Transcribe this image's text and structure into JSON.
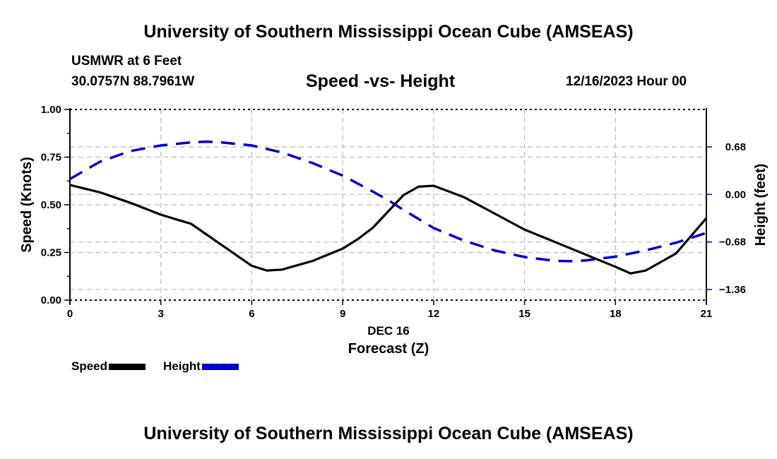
{
  "header": {
    "title": "University of Southern Mississippi Ocean Cube (AMSEAS)",
    "station": "USMWR at 6 Feet",
    "coordinates": "30.0757N  88.7961W",
    "subtitle": "Speed -vs- Height",
    "datetime": "12/16/2023 Hour 00"
  },
  "footer": {
    "title": "University of Southern Mississippi Ocean Cube (AMSEAS)"
  },
  "chart_data": {
    "type": "line",
    "title": "Speed -vs- Height",
    "xlabel": "Forecast (Z)",
    "xlabel_date": "DEC 16",
    "ylabel": "Speed (Knots)",
    "y2label": "Height (feet)",
    "xlim": [
      0,
      21
    ],
    "ylim": [
      0,
      1.0
    ],
    "y2lim": [
      -1.36,
      0.68
    ],
    "xticks": [
      "0",
      "3",
      "6",
      "9",
      "12",
      "15",
      "18",
      "21"
    ],
    "xtick_values": [
      0,
      3,
      6,
      9,
      12,
      15,
      18,
      21
    ],
    "yticks": [
      "0.00",
      "0.25",
      "0.50",
      "0.75",
      "1.00"
    ],
    "ytick_values": [
      0,
      0.25,
      0.5,
      0.75,
      1.0
    ],
    "y2ticks": [
      "0.68",
      "0.00",
      "−0.68",
      "−1.36"
    ],
    "y2tick_values": [
      0.68,
      0,
      -0.68,
      -1.36
    ],
    "grid": true,
    "legend_position": "bottom-left",
    "colors": {
      "speed": "#000000",
      "height": "#0000cc",
      "grid": "#bbbbbb"
    },
    "series": [
      {
        "name": "Speed",
        "axis": "left",
        "style": "solid",
        "x": [
          0,
          1,
          2,
          3,
          4,
          5,
          6,
          6.5,
          7,
          8,
          9,
          9.5,
          10,
          11,
          11.5,
          12,
          13,
          14,
          15,
          16,
          17,
          18,
          18.5,
          19,
          20,
          21
        ],
        "values": [
          0.604,
          0.565,
          0.51,
          0.448,
          0.4,
          0.29,
          0.18,
          0.155,
          0.16,
          0.205,
          0.27,
          0.32,
          0.38,
          0.55,
          0.595,
          0.6,
          0.54,
          0.455,
          0.37,
          0.305,
          0.24,
          0.175,
          0.14,
          0.155,
          0.245,
          0.43
        ]
      },
      {
        "name": "Height",
        "axis": "right",
        "style": "dashed",
        "x": [
          0,
          1,
          2,
          3,
          4,
          4.5,
          5,
          6,
          7,
          8,
          9,
          10,
          10.5,
          11,
          12,
          13,
          14,
          15,
          16,
          16.5,
          17,
          18,
          19,
          20,
          21
        ],
        "values": [
          0.22,
          0.47,
          0.62,
          0.7,
          0.745,
          0.755,
          0.745,
          0.7,
          0.6,
          0.45,
          0.27,
          0.04,
          -0.08,
          -0.22,
          -0.48,
          -0.66,
          -0.8,
          -0.895,
          -0.95,
          -0.955,
          -0.945,
          -0.89,
          -0.8,
          -0.69,
          -0.55
        ]
      }
    ]
  }
}
